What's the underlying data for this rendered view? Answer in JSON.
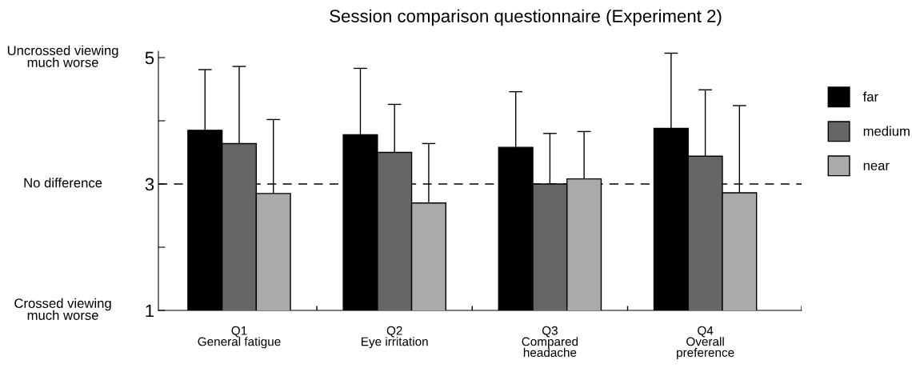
{
  "chart_data": {
    "type": "bar",
    "title": "Session comparison questionnaire (Experiment 2)",
    "categories": [
      "Q1\nGeneral fatigue",
      "Q2\nEye irritation",
      "Q3\nCompared\nheadache",
      "Q4\nOverall\npreference"
    ],
    "series": [
      {
        "name": "far",
        "color": "#000000",
        "values": [
          3.85,
          3.78,
          3.58,
          3.88
        ],
        "errors": [
          0.96,
          1.05,
          0.88,
          1.19
        ]
      },
      {
        "name": "medium",
        "color": "#666666",
        "values": [
          3.64,
          3.5,
          3.0,
          3.44
        ],
        "errors": [
          1.22,
          0.76,
          0.8,
          1.05
        ]
      },
      {
        "name": "near",
        "color": "#aaaaaa",
        "values": [
          2.85,
          2.7,
          3.08,
          2.86
        ],
        "errors": [
          1.17,
          0.94,
          0.75,
          1.38
        ]
      }
    ],
    "ylim": [
      1,
      5.1
    ],
    "yticks": [
      {
        "value": 1,
        "label": "1"
      },
      {
        "value": 2,
        "label": null
      },
      {
        "value": 3,
        "label": "3"
      },
      {
        "value": 4,
        "label": null
      },
      {
        "value": 5,
        "label": "5"
      }
    ],
    "ref_lines": [
      {
        "axis": "y",
        "value": 3,
        "label": null,
        "line_style": "dashed",
        "color": "#000000"
      }
    ],
    "annotations": [
      "Uncrossed viewing\nmuch worse",
      "No difference",
      "Crossed viewing\nmuch worse"
    ],
    "legend": "right",
    "grid": false
  }
}
